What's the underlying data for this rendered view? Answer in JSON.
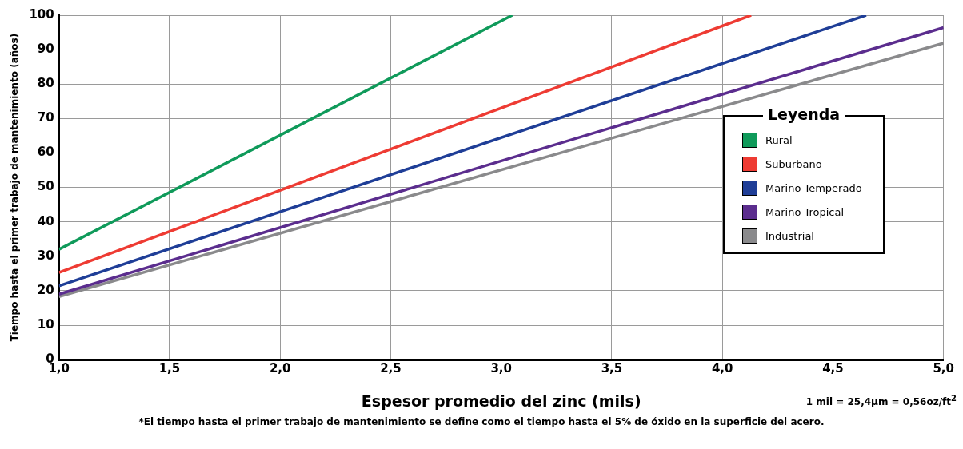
{
  "chart_data": {
    "type": "line",
    "xlabel": "Espesor promedio del zinc (mils)",
    "ylabel": "Tiempo hasta el primer trabajo de mantenimiento (años)",
    "legend_title": "Leyenda",
    "legend": "right",
    "grid": true,
    "marker": "none",
    "line_style": "solid",
    "xlim": [
      1,
      5
    ],
    "xticks": [
      {
        "value": 1,
        "label": "1,0"
      },
      {
        "value": 1.5,
        "label": "1,5"
      },
      {
        "value": 2,
        "label": "2,0"
      },
      {
        "value": 2.5,
        "label": "2,5"
      },
      {
        "value": 3,
        "label": "3,0"
      },
      {
        "value": 3.5,
        "label": "3,5"
      },
      {
        "value": 4,
        "label": "4,0"
      },
      {
        "value": 4.5,
        "label": "4,5"
      },
      {
        "value": 5,
        "label": "5,0"
      }
    ],
    "ylim": [
      0,
      100
    ],
    "yticks": [
      0,
      10,
      20,
      30,
      40,
      50,
      60,
      70,
      80,
      90,
      100
    ],
    "series": [
      {
        "name": "Rural",
        "color": "#0f9a5a",
        "x": [
          1,
          3.05
        ],
        "values": [
          32,
          100
        ]
      },
      {
        "name": "Suburbano",
        "color": "#ee3b33",
        "x": [
          1,
          4.13
        ],
        "values": [
          25.3,
          100
        ]
      },
      {
        "name": "Marino Temperado",
        "color": "#1f3e97",
        "x": [
          1,
          4.65
        ],
        "values": [
          21.4,
          100
        ]
      },
      {
        "name": "Marino Tropical",
        "color": "#5b2d8e",
        "x": [
          1,
          5
        ],
        "values": [
          19,
          96.4
        ]
      },
      {
        "name": "Industrial",
        "color": "#8a8a8c",
        "x": [
          1,
          5
        ],
        "values": [
          18.3,
          91.9
        ]
      }
    ],
    "annotations": [
      "1 mil = 25,4µm = 0,56oz/ft$^{2}$",
      "*El tiempo hasta el primer trabajo de mantenimiento se define como el tiempo hasta el 5% de óxido en la superficie del acero."
    ]
  }
}
